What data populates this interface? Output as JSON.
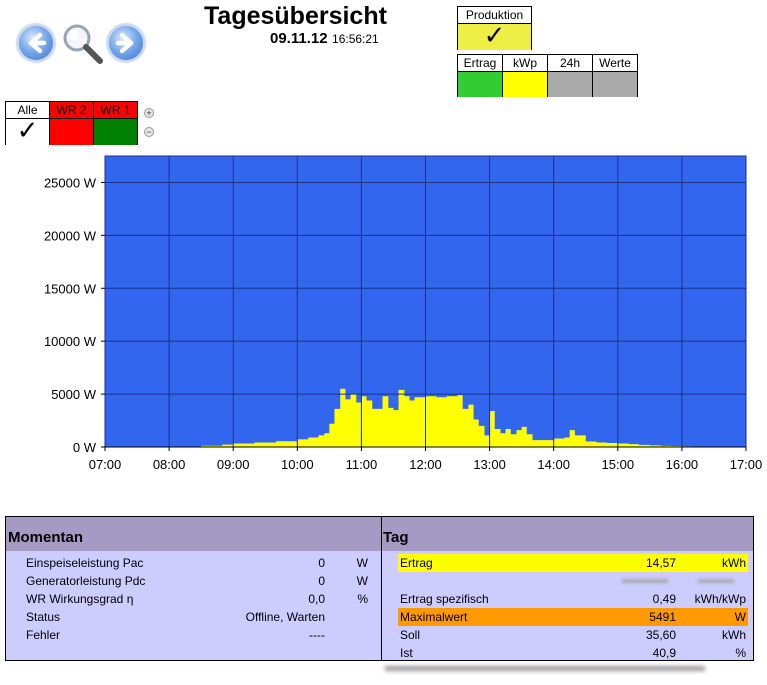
{
  "header": {
    "title": "Tagesübersicht",
    "date": "09.11.12",
    "time": "16:56:21"
  },
  "produktion": {
    "label": "Produktion",
    "color": "#eeee44"
  },
  "view_tabs": [
    {
      "label": "Ertrag",
      "color": "#33cc33"
    },
    {
      "label": "kWp",
      "color": "#ffff00"
    },
    {
      "label": "24h",
      "color": "#aaaaaa"
    },
    {
      "label": "Werte",
      "color": "#aaaaaa"
    }
  ],
  "inverters": [
    {
      "label": "Alle",
      "head_color": "#ffffff",
      "body_color": "#ffffff",
      "checked": true
    },
    {
      "label": "WR 2",
      "head_color": "#ff0000",
      "body_color": "#ff0000",
      "checked": false
    },
    {
      "label": "WR 1",
      "head_color": "#ff0000",
      "body_color": "#008000",
      "checked": false
    }
  ],
  "zoom": {
    "plus": "+",
    "minus": "−"
  },
  "chart_data": {
    "type": "area",
    "background": "#3366ee",
    "fill_color": "#ffff00",
    "ylim": [
      0,
      27500
    ],
    "y_ticks": [
      0,
      5000,
      10000,
      15000,
      20000,
      25000
    ],
    "y_tick_labels": [
      "0 W",
      "5000 W",
      "10000 W",
      "15000 W",
      "20000 W",
      "25000 W"
    ],
    "x_ticks": [
      "07:00",
      "08:00",
      "09:00",
      "10:00",
      "11:00",
      "12:00",
      "13:00",
      "14:00",
      "15:00",
      "16:00",
      "17:00"
    ],
    "x_range_hours": [
      7,
      17
    ],
    "grid": true,
    "series": [
      {
        "points": [
          [
            8.17,
            40
          ],
          [
            8.5,
            120
          ],
          [
            8.83,
            230
          ],
          [
            9.0,
            330
          ],
          [
            9.33,
            420
          ],
          [
            9.67,
            540
          ],
          [
            10.0,
            720
          ],
          [
            10.17,
            900
          ],
          [
            10.33,
            1100
          ],
          [
            10.42,
            1300
          ],
          [
            10.5,
            2200
          ],
          [
            10.58,
            3600
          ],
          [
            10.67,
            5500
          ],
          [
            10.75,
            4500
          ],
          [
            10.83,
            5000
          ],
          [
            10.92,
            4200
          ],
          [
            11.0,
            4800
          ],
          [
            11.08,
            4400
          ],
          [
            11.17,
            3600
          ],
          [
            11.33,
            4800
          ],
          [
            11.42,
            3700
          ],
          [
            11.5,
            3500
          ],
          [
            11.58,
            5400
          ],
          [
            11.67,
            4800
          ],
          [
            11.75,
            4400
          ],
          [
            11.83,
            4700
          ],
          [
            12.0,
            4800
          ],
          [
            12.17,
            4700
          ],
          [
            12.33,
            4800
          ],
          [
            12.5,
            4900
          ],
          [
            12.58,
            3600
          ],
          [
            12.67,
            4000
          ],
          [
            12.75,
            2600
          ],
          [
            12.83,
            2000
          ],
          [
            12.92,
            1100
          ],
          [
            13.0,
            3400
          ],
          [
            13.08,
            1700
          ],
          [
            13.17,
            1300
          ],
          [
            13.25,
            1700
          ],
          [
            13.33,
            1200
          ],
          [
            13.42,
            1600
          ],
          [
            13.5,
            1900
          ],
          [
            13.58,
            1200
          ],
          [
            13.67,
            650
          ],
          [
            13.83,
            650
          ],
          [
            14.0,
            800
          ],
          [
            14.17,
            900
          ],
          [
            14.25,
            1600
          ],
          [
            14.33,
            1100
          ],
          [
            14.5,
            520
          ],
          [
            14.67,
            420
          ],
          [
            14.83,
            380
          ],
          [
            15.0,
            330
          ],
          [
            15.17,
            270
          ],
          [
            15.33,
            200
          ],
          [
            15.5,
            150
          ],
          [
            15.67,
            110
          ],
          [
            15.83,
            80
          ],
          [
            16.0,
            55
          ],
          [
            16.17,
            35
          ],
          [
            16.3,
            20
          ]
        ]
      }
    ]
  },
  "momentan": {
    "title": "Momentan",
    "rows": [
      {
        "label": "Einspeiseleistung Pac",
        "value": "0",
        "unit": "W"
      },
      {
        "label": "Generatorleistung Pdc",
        "value": "0",
        "unit": "W"
      },
      {
        "label": "WR Wirkungsgrad η",
        "value": "0,0",
        "unit": "%"
      },
      {
        "label": "Status",
        "value": "Offline, Warten",
        "unit": ""
      },
      {
        "label": "Fehler",
        "value": "----",
        "unit": ""
      }
    ]
  },
  "tag": {
    "title": "Tag",
    "rows": [
      {
        "label": "Ertrag",
        "value": "14,57",
        "unit": "kWh",
        "highlight": "#ffff00"
      },
      {
        "label": "Ertrag spezifisch",
        "value": "0,49",
        "unit": "kWh/kWp",
        "highlight": ""
      },
      {
        "label": "Maximalwert",
        "value": "5491",
        "unit": "W",
        "highlight": "#ff9900"
      },
      {
        "label": "Soll",
        "value": "35,60",
        "unit": "kWh",
        "highlight": ""
      },
      {
        "label": "Ist",
        "value": "40,9",
        "unit": "%",
        "highlight": ""
      }
    ]
  },
  "colors": {
    "panel_header": "#a59ac4",
    "panel_body": "#ccccff"
  }
}
